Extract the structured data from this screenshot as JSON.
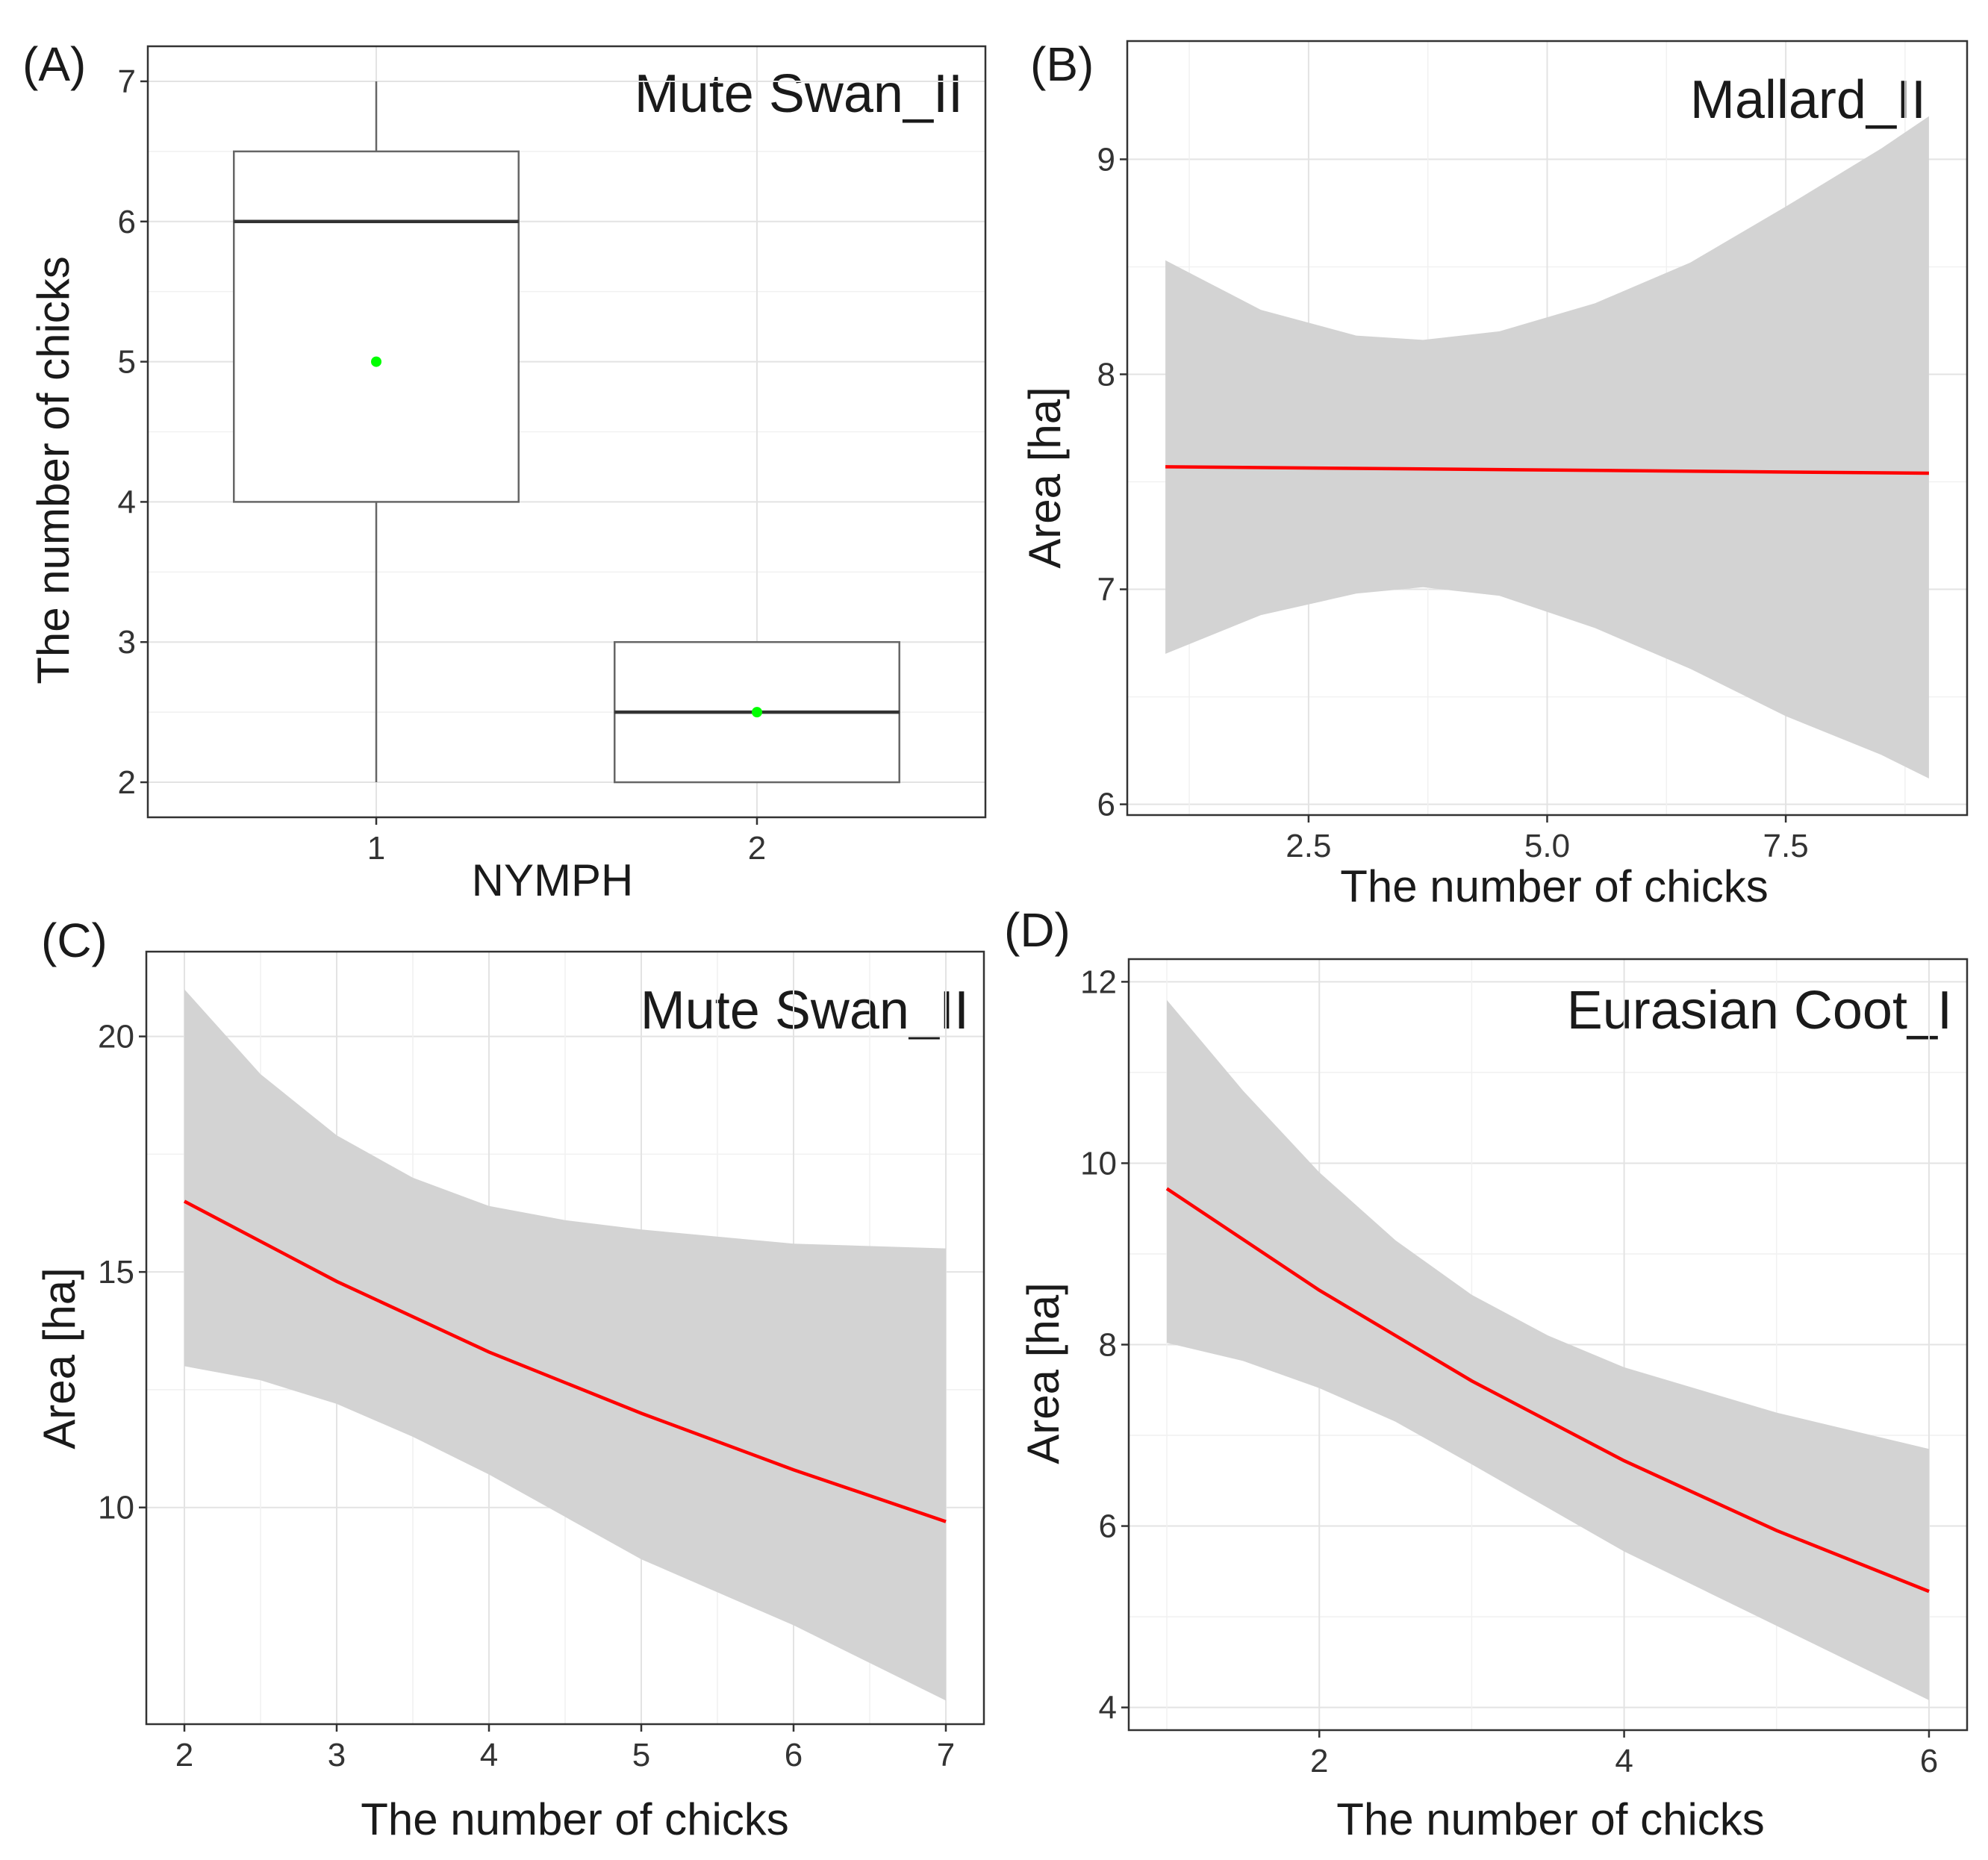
{
  "colors": {
    "fit_line": "#ff0000",
    "ribbon": "#d3d3d3",
    "mean_point": "#00ff00",
    "box_stroke": "#666666",
    "median": "#333333"
  },
  "chart_data": [
    {
      "panel": "(A)",
      "type": "box",
      "title": "Mute Swan_II",
      "xlabel": "NYMPH",
      "ylabel": "The number of chicks",
      "categories": [
        "1",
        "2"
      ],
      "ylim": [
        1.75,
        7.25
      ],
      "yticks": [
        2,
        3,
        4,
        5,
        6,
        7
      ],
      "boxes": [
        {
          "category": "1",
          "min": 2,
          "q1": 4,
          "median": 6,
          "q3": 6.5,
          "max": 7,
          "mean": 5
        },
        {
          "category": "2",
          "min": 2,
          "q1": 2,
          "median": 2.5,
          "q3": 3,
          "max": 3,
          "mean": 2.5
        }
      ]
    },
    {
      "panel": "(B)",
      "type": "line",
      "title": "Mallard_II",
      "xlabel": "The number of chicks",
      "ylabel": "Area [ha]",
      "xlim": [
        0.6,
        9.4
      ],
      "ylim": [
        5.95,
        9.55
      ],
      "xticks": [
        2.5,
        5.0,
        7.5
      ],
      "xtick_labels": [
        "2.5",
        "5.0",
        "7.5"
      ],
      "yticks": [
        6,
        7,
        8,
        9
      ],
      "ytick_labels": [
        "6",
        "7",
        "8",
        "9"
      ],
      "fit": {
        "x": [
          1,
          9
        ],
        "y": [
          7.57,
          7.54
        ]
      },
      "ribbon": {
        "x": [
          1,
          2,
          3,
          3.7,
          4.5,
          5.5,
          6.5,
          7.5,
          8.5,
          9
        ],
        "upper": [
          8.53,
          8.3,
          8.18,
          8.16,
          8.2,
          8.33,
          8.52,
          8.78,
          9.05,
          9.2
        ],
        "lower": [
          6.7,
          6.88,
          6.98,
          7.01,
          6.97,
          6.82,
          6.63,
          6.41,
          6.23,
          6.12
        ]
      }
    },
    {
      "panel": "(C)",
      "type": "line",
      "title": "Mute Swan_II",
      "xlabel": "The number of chicks",
      "ylabel": "Area [ha]",
      "xlim": [
        1.75,
        7.25
      ],
      "ylim": [
        5.4,
        21.8
      ],
      "xticks": [
        2,
        3,
        4,
        5,
        6,
        7
      ],
      "xtick_labels": [
        "2",
        "3",
        "4",
        "5",
        "6",
        "7"
      ],
      "yticks": [
        10,
        15,
        20
      ],
      "ytick_labels": [
        "10",
        "15",
        "20"
      ],
      "fit": {
        "x": [
          2,
          3,
          4,
          5,
          6,
          7
        ],
        "y": [
          16.5,
          14.8,
          13.3,
          12.0,
          10.8,
          9.7
        ]
      },
      "ribbon": {
        "x": [
          2,
          2.5,
          3,
          3.5,
          4,
          4.5,
          5,
          6,
          7
        ],
        "upper": [
          21.0,
          19.2,
          17.9,
          17.0,
          16.4,
          16.1,
          15.9,
          15.6,
          15.5
        ],
        "lower": [
          13.0,
          12.7,
          12.2,
          11.5,
          10.7,
          9.8,
          8.9,
          7.5,
          5.9
        ]
      }
    },
    {
      "panel": "(D)",
      "type": "line",
      "title": "Eurasian Coot_I",
      "xlabel": "The number of chicks",
      "ylabel": "Area [ha]",
      "xlim": [
        0.75,
        6.25
      ],
      "ylim": [
        3.75,
        12.25
      ],
      "xticks": [
        2,
        4,
        6
      ],
      "xtick_labels": [
        "2",
        "4",
        "6"
      ],
      "yticks": [
        4,
        6,
        8,
        10,
        12
      ],
      "ytick_labels": [
        "4",
        "6",
        "8",
        "10",
        "12"
      ],
      "fit": {
        "x": [
          1,
          2,
          3,
          4,
          5,
          6
        ],
        "y": [
          9.72,
          8.6,
          7.6,
          6.72,
          5.95,
          5.28
        ]
      },
      "ribbon": {
        "x": [
          1,
          1.5,
          2,
          2.5,
          3,
          3.5,
          4,
          5,
          6
        ],
        "upper": [
          11.8,
          10.8,
          9.9,
          9.15,
          8.55,
          8.1,
          7.75,
          7.25,
          6.85
        ],
        "lower": [
          8.02,
          7.82,
          7.52,
          7.15,
          6.68,
          6.2,
          5.72,
          4.9,
          4.08
        ]
      }
    }
  ]
}
